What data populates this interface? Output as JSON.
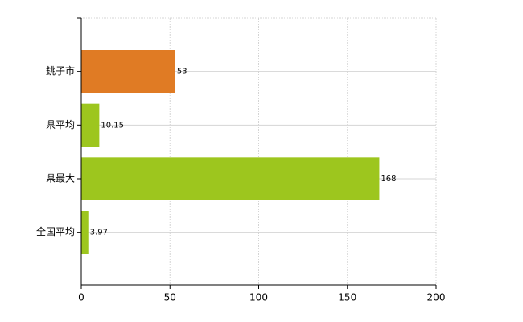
{
  "chart_data": {
    "type": "bar",
    "orientation": "horizontal",
    "categories": [
      "銚子市",
      "県平均",
      "県最大",
      "全国平均"
    ],
    "values": [
      53,
      10.15,
      168,
      3.97
    ],
    "colors": [
      "#e07b24",
      "#9dc61e",
      "#9dc61e",
      "#9dc61e"
    ],
    "xlim": [
      0,
      200
    ],
    "xticks": [
      0,
      50,
      100,
      150,
      200
    ],
    "grid": true
  }
}
